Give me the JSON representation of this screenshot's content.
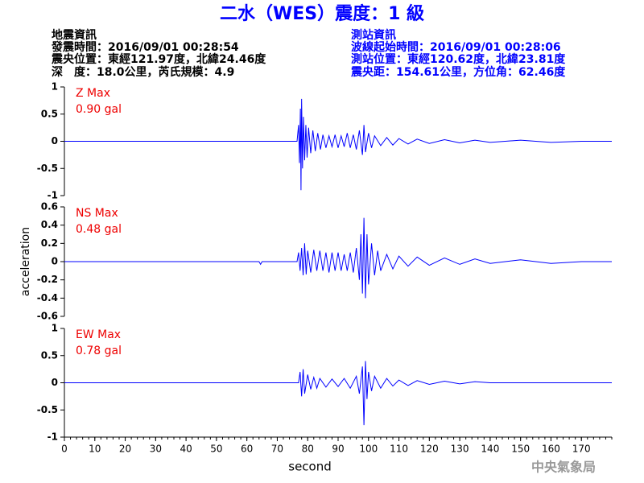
{
  "header": {
    "title": "二水（WES）震度：1 級",
    "event": [
      "地震資訊",
      "發震時間：2016/09/01 00:28:54",
      "震央位置：東經121.97度，北緯24.46度",
      "深　度：18.0公里，芮氏規模：4.9"
    ],
    "station": [
      "測站資訊",
      "波線起始時間：2016/09/01 00:28:06",
      "測站位置：東經120.62度，北緯23.81度",
      "震央距：154.61公里，方位角：62.46度"
    ],
    "footer": "中央氣象局"
  },
  "chart_data": [
    {
      "type": "line",
      "annotations": [
        "Z Max",
        "0.90 gal"
      ],
      "color": "#0000ff",
      "ylim": [
        -1,
        1
      ],
      "yticks": [
        -1,
        -0.5,
        0,
        0.5,
        1
      ],
      "xlim": [
        0,
        180
      ],
      "x": [
        0,
        76.5,
        77,
        77.3,
        77.6,
        77.8,
        78,
        78.3,
        78.6,
        79,
        79.4,
        79.8,
        80.3,
        81,
        81.7,
        82.5,
        83.3,
        84.2,
        85,
        86,
        87,
        88,
        89,
        90,
        91,
        92,
        93,
        94,
        95,
        96,
        97,
        98,
        98.5,
        99,
        100,
        101,
        102,
        104,
        106,
        108,
        110,
        113,
        116,
        120,
        125,
        130,
        135,
        140,
        150,
        160,
        170,
        180
      ],
      "values": [
        0,
        0,
        0.3,
        -0.4,
        0.6,
        -0.9,
        0.78,
        -0.5,
        0.45,
        -0.35,
        0.3,
        -0.3,
        0.25,
        -0.22,
        0.2,
        -0.18,
        0.15,
        -0.15,
        0.12,
        -0.12,
        0.1,
        -0.1,
        0.12,
        -0.12,
        0.1,
        -0.1,
        0.15,
        -0.12,
        0.12,
        -0.15,
        0.2,
        -0.25,
        0.3,
        -0.2,
        0.15,
        -0.12,
        0.1,
        -0.08,
        0.07,
        -0.07,
        0.05,
        -0.05,
        0.04,
        -0.04,
        0.03,
        -0.03,
        0.02,
        -0.02,
        0.02,
        -0.02,
        0,
        0
      ]
    },
    {
      "type": "line",
      "annotations": [
        "NS Max",
        "0.48 gal"
      ],
      "ylabel": "acceleration",
      "color": "#0000ff",
      "ylim": [
        -0.6,
        0.6
      ],
      "yticks": [
        -0.6,
        -0.4,
        -0.2,
        0,
        0.2,
        0.4,
        0.6
      ],
      "xlim": [
        0,
        180
      ],
      "x": [
        0,
        64,
        64.5,
        65,
        76.5,
        77,
        77.5,
        78,
        78.5,
        79,
        79.5,
        80,
        81,
        82,
        83,
        84,
        85,
        86,
        87,
        88,
        89,
        90,
        91,
        92,
        93,
        94,
        95,
        96,
        97,
        97.5,
        98,
        98.5,
        99,
        99.5,
        100,
        101,
        102,
        103,
        104,
        106,
        108,
        110,
        113,
        116,
        120,
        125,
        130,
        135,
        140,
        150,
        160,
        170,
        180
      ],
      "values": [
        0,
        0,
        -0.03,
        0,
        0,
        0.1,
        -0.1,
        0.15,
        -0.15,
        0.2,
        -0.14,
        0.12,
        -0.12,
        0.13,
        -0.1,
        0.12,
        -0.1,
        0.1,
        -0.12,
        0.1,
        -0.1,
        0.1,
        -0.1,
        0.08,
        -0.1,
        0.1,
        -0.12,
        0.15,
        -0.2,
        0.3,
        -0.35,
        0.48,
        -0.4,
        0.3,
        -0.25,
        0.2,
        -0.15,
        0.12,
        -0.1,
        0.08,
        -0.08,
        0.06,
        -0.05,
        0.05,
        -0.04,
        0.04,
        -0.03,
        0.03,
        -0.02,
        0.02,
        -0.02,
        0,
        0
      ]
    },
    {
      "type": "line",
      "annotations": [
        "EW Max",
        "0.78 gal"
      ],
      "xlabel": "second",
      "color": "#0000ff",
      "ylim": [
        -1,
        1
      ],
      "yticks": [
        -1,
        -0.5,
        0,
        0.5,
        1
      ],
      "xlim": [
        0,
        180
      ],
      "xticks": [
        0,
        10,
        20,
        30,
        40,
        50,
        60,
        70,
        80,
        90,
        100,
        110,
        120,
        130,
        140,
        150,
        160,
        170
      ],
      "x": [
        0,
        77,
        77.5,
        78,
        78.5,
        79,
        80,
        81,
        82,
        83,
        84,
        86,
        88,
        90,
        92,
        94,
        96,
        97,
        98,
        98.5,
        99,
        99.5,
        100,
        101,
        102,
        104,
        106,
        108,
        110,
        113,
        116,
        120,
        125,
        130,
        135,
        140,
        180
      ],
      "values": [
        0,
        0,
        0.2,
        -0.25,
        0.25,
        -0.2,
        0.15,
        -0.12,
        0.1,
        -0.1,
        0.08,
        -0.08,
        0.07,
        -0.07,
        0.08,
        -0.1,
        0.12,
        -0.2,
        0.3,
        -0.78,
        0.4,
        -0.3,
        0.2,
        -0.15,
        0.12,
        -0.1,
        0.08,
        -0.06,
        0.05,
        -0.05,
        0.04,
        -0.03,
        0.03,
        -0.02,
        0.02,
        0,
        0
      ]
    }
  ]
}
